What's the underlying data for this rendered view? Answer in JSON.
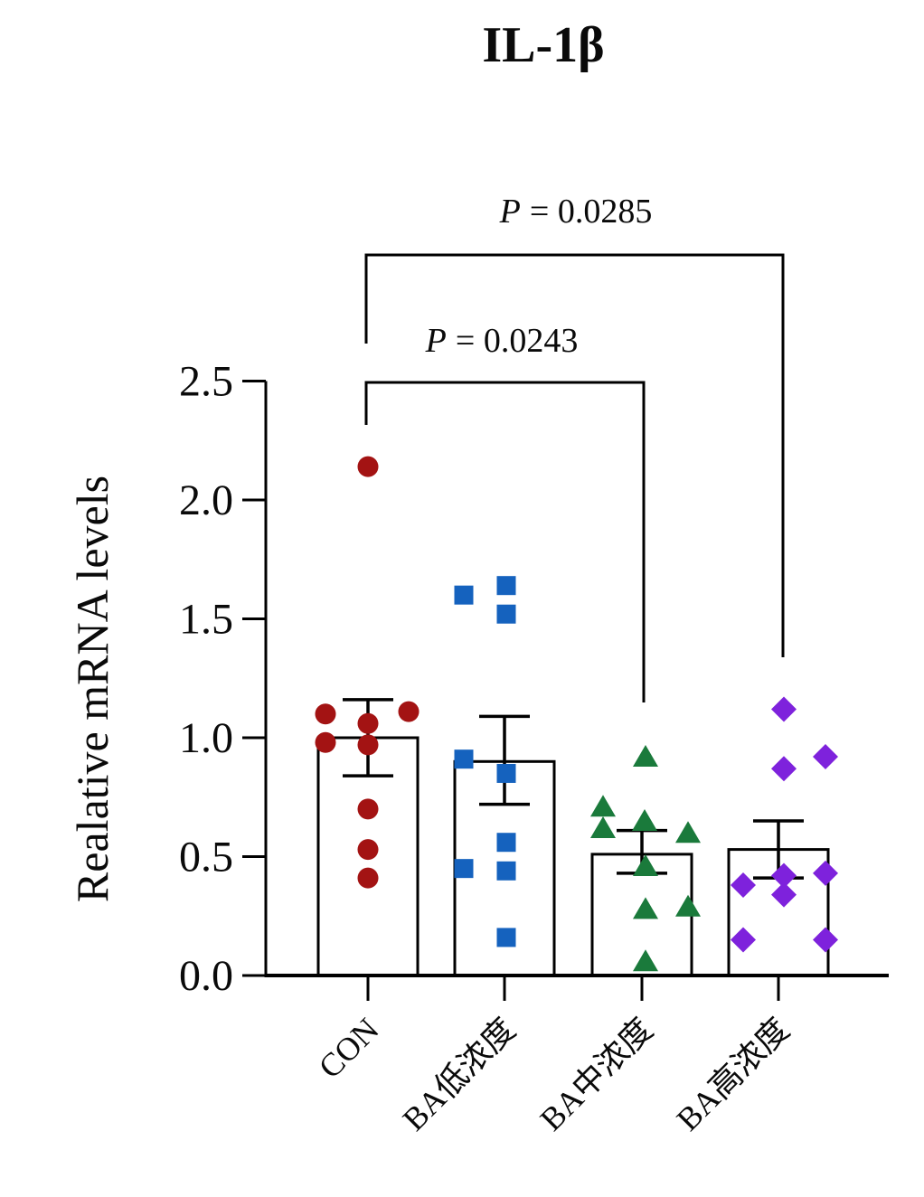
{
  "title": "IL-1β",
  "y_axis": {
    "label": "Realative mRNA levels",
    "ticks": [
      "0.0",
      "0.5",
      "1.0",
      "1.5",
      "2.0",
      "2.5"
    ]
  },
  "x_axis": {
    "categories": [
      "CON",
      "BA低浓度",
      "BA中浓度",
      "BA高浓度"
    ]
  },
  "significance": [
    {
      "symbol": "P",
      "rest": "= 0.0285",
      "compares": [
        "CON",
        "BA高浓度"
      ]
    },
    {
      "symbol": "P",
      "rest": "= 0.0243",
      "compares": [
        "CON",
        "BA中浓度"
      ]
    }
  ],
  "chart_data": {
    "type": "bar",
    "subtype": "bars-with-scatter-overlay-and-error-bars",
    "title": "IL-1β",
    "xlabel": "",
    "ylabel": "Realative mRNA levels",
    "ylim": [
      0,
      2.5
    ],
    "yticks": [
      0.0,
      0.5,
      1.0,
      1.5,
      2.0,
      2.5
    ],
    "categories": [
      "CON",
      "BA低浓度",
      "BA中浓度",
      "BA高浓度"
    ],
    "bar_fill": "#ffffff",
    "bar_edge": "#000000",
    "grid": false,
    "legend": "none",
    "series": [
      {
        "name": "CON",
        "marker": "circle",
        "color": "#A31313",
        "mean": 1.0,
        "sem_low": 0.84,
        "sem_high": 1.16,
        "points": [
          2.14,
          1.11,
          1.1,
          1.06,
          0.98,
          0.97,
          0.7,
          0.53,
          0.41
        ],
        "jitter": [
          0,
          45,
          -47,
          0,
          -47,
          0,
          0,
          0,
          0
        ]
      },
      {
        "name": "BA低浓度",
        "marker": "square",
        "color": "#1562BE",
        "mean": 0.9,
        "sem_low": 0.72,
        "sem_high": 1.09,
        "points": [
          1.64,
          1.6,
          1.52,
          0.91,
          0.85,
          0.56,
          0.45,
          0.44,
          0.16
        ],
        "jitter": [
          2,
          -45,
          2,
          -45,
          2,
          2,
          -45,
          2,
          2
        ]
      },
      {
        "name": "BA中浓度",
        "marker": "triangle",
        "color": "#1A7A3B",
        "mean": 0.51,
        "sem_low": 0.43,
        "sem_high": 0.61,
        "points": [
          0.92,
          0.71,
          0.65,
          0.62,
          0.6,
          0.46,
          0.29,
          0.28,
          0.06
        ],
        "jitter": [
          4,
          -43,
          3,
          -43,
          51,
          4,
          51,
          4,
          4
        ]
      },
      {
        "name": "BA高浓度",
        "marker": "diamond",
        "color": "#7E22DC",
        "mean": 0.53,
        "sem_low": 0.41,
        "sem_high": 0.65,
        "points": [
          1.12,
          0.92,
          0.87,
          0.43,
          0.42,
          0.38,
          0.34,
          0.15,
          0.15
        ],
        "jitter": [
          6,
          52,
          6,
          52,
          6,
          -39,
          6,
          -39,
          52
        ]
      }
    ],
    "annotations": [
      {
        "text": "P = 0.0285",
        "between": [
          "CON",
          "BA高浓度"
        ]
      },
      {
        "text": "P = 0.0243",
        "between": [
          "CON",
          "BA中浓度"
        ]
      }
    ]
  }
}
